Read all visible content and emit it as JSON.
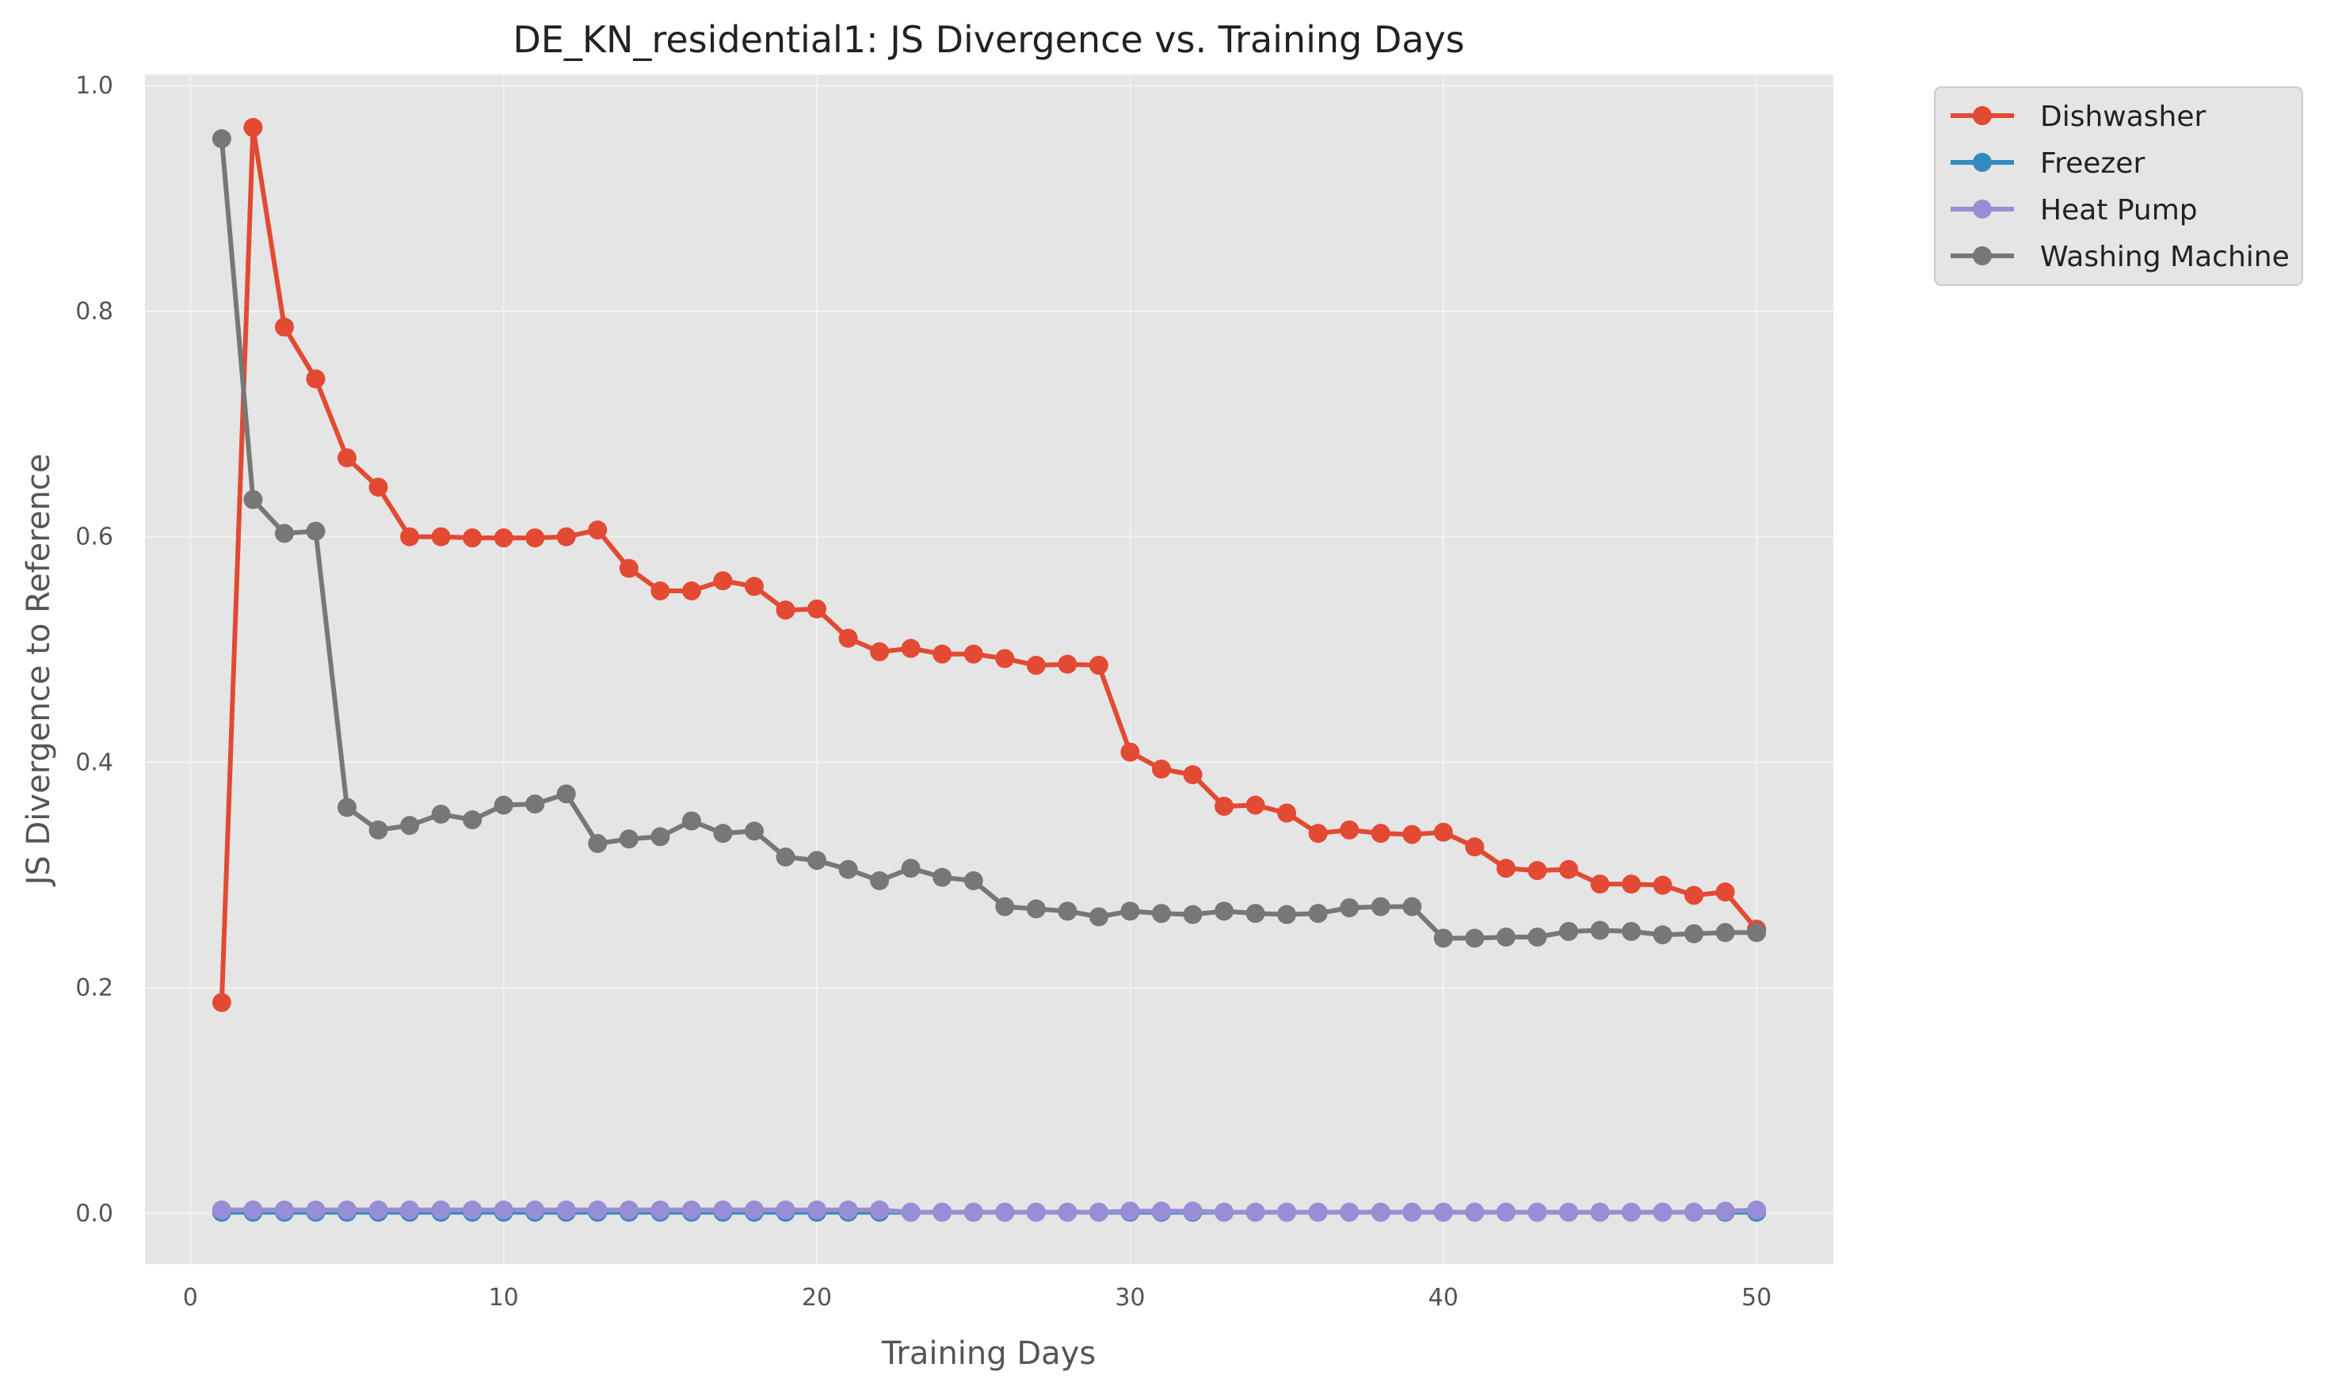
{
  "chart_data": {
    "type": "line",
    "title": "DE_KN_residential1: JS Divergence vs. Training Days",
    "xlabel": "Training Days",
    "ylabel": "JS Divergence to Reference",
    "xlim": [
      -1.45,
      52.45
    ],
    "ylim": [
      -0.045,
      1.01
    ],
    "xticks": [
      0,
      10,
      20,
      30,
      40,
      50
    ],
    "yticks": [
      0.0,
      0.2,
      0.4,
      0.6,
      0.8,
      1.0
    ],
    "ytick_labels": [
      "0.0",
      "0.2",
      "0.4",
      "0.6",
      "0.8",
      "1.0"
    ],
    "grid": true,
    "legend_position": "outside-top-right",
    "x": [
      1,
      2,
      3,
      4,
      5,
      6,
      7,
      8,
      9,
      10,
      11,
      12,
      13,
      14,
      15,
      16,
      17,
      18,
      19,
      20,
      21,
      22,
      23,
      24,
      25,
      26,
      27,
      28,
      29,
      30,
      31,
      32,
      33,
      34,
      35,
      36,
      37,
      38,
      39,
      40,
      41,
      42,
      43,
      44,
      45,
      46,
      47,
      48,
      49,
      50
    ],
    "series": [
      {
        "name": "Dishwasher",
        "color": "#E24A33",
        "values": [
          0.187,
          0.963,
          0.786,
          0.74,
          0.67,
          0.644,
          0.6,
          0.6,
          0.599,
          0.599,
          0.599,
          0.6,
          0.606,
          0.572,
          0.552,
          0.552,
          0.561,
          0.556,
          0.535,
          0.536,
          0.51,
          0.498,
          0.501,
          0.496,
          0.496,
          0.492,
          0.486,
          0.487,
          0.486,
          0.409,
          0.394,
          0.389,
          0.361,
          0.362,
          0.355,
          0.337,
          0.34,
          0.337,
          0.336,
          0.338,
          0.325,
          0.306,
          0.304,
          0.305,
          0.292,
          0.292,
          0.291,
          0.282,
          0.285,
          0.252
        ]
      },
      {
        "name": "Freezer",
        "color": "#348ABD",
        "values": [
          0.001,
          0.001,
          0.001,
          0.001,
          0.001,
          0.001,
          0.001,
          0.001,
          0.001,
          0.001,
          0.001,
          0.001,
          0.001,
          0.001,
          0.001,
          0.001,
          0.001,
          0.001,
          0.001,
          0.001,
          0.001,
          0.001,
          0.001,
          0.001,
          0.001,
          0.001,
          0.001,
          0.001,
          0.001,
          0.001,
          0.001,
          0.001,
          0.001,
          0.001,
          0.001,
          0.001,
          0.001,
          0.001,
          0.001,
          0.001,
          0.001,
          0.001,
          0.001,
          0.001,
          0.001,
          0.001,
          0.001,
          0.001,
          0.001,
          0.001
        ]
      },
      {
        "name": "Heat Pump",
        "color": "#988ED5",
        "values": [
          0.003,
          0.003,
          0.003,
          0.003,
          0.003,
          0.003,
          0.003,
          0.003,
          0.003,
          0.003,
          0.003,
          0.003,
          0.003,
          0.003,
          0.003,
          0.003,
          0.003,
          0.003,
          0.003,
          0.003,
          0.003,
          0.003,
          0.001,
          0.001,
          0.001,
          0.001,
          0.001,
          0.001,
          0.001,
          0.002,
          0.002,
          0.002,
          0.001,
          0.001,
          0.001,
          0.001,
          0.001,
          0.001,
          0.001,
          0.001,
          0.001,
          0.001,
          0.001,
          0.001,
          0.001,
          0.001,
          0.001,
          0.001,
          0.002,
          0.003
        ]
      },
      {
        "name": "Washing Machine",
        "color": "#777777",
        "values": [
          0.953,
          0.633,
          0.603,
          0.605,
          0.36,
          0.34,
          0.344,
          0.354,
          0.349,
          0.362,
          0.363,
          0.372,
          0.328,
          0.332,
          0.334,
          0.348,
          0.337,
          0.339,
          0.316,
          0.313,
          0.305,
          0.295,
          0.306,
          0.298,
          0.295,
          0.272,
          0.27,
          0.268,
          0.263,
          0.268,
          0.266,
          0.265,
          0.268,
          0.266,
          0.265,
          0.266,
          0.271,
          0.272,
          0.272,
          0.244,
          0.244,
          0.245,
          0.245,
          0.25,
          0.251,
          0.25,
          0.247,
          0.248,
          0.249,
          0.249
        ]
      }
    ]
  }
}
